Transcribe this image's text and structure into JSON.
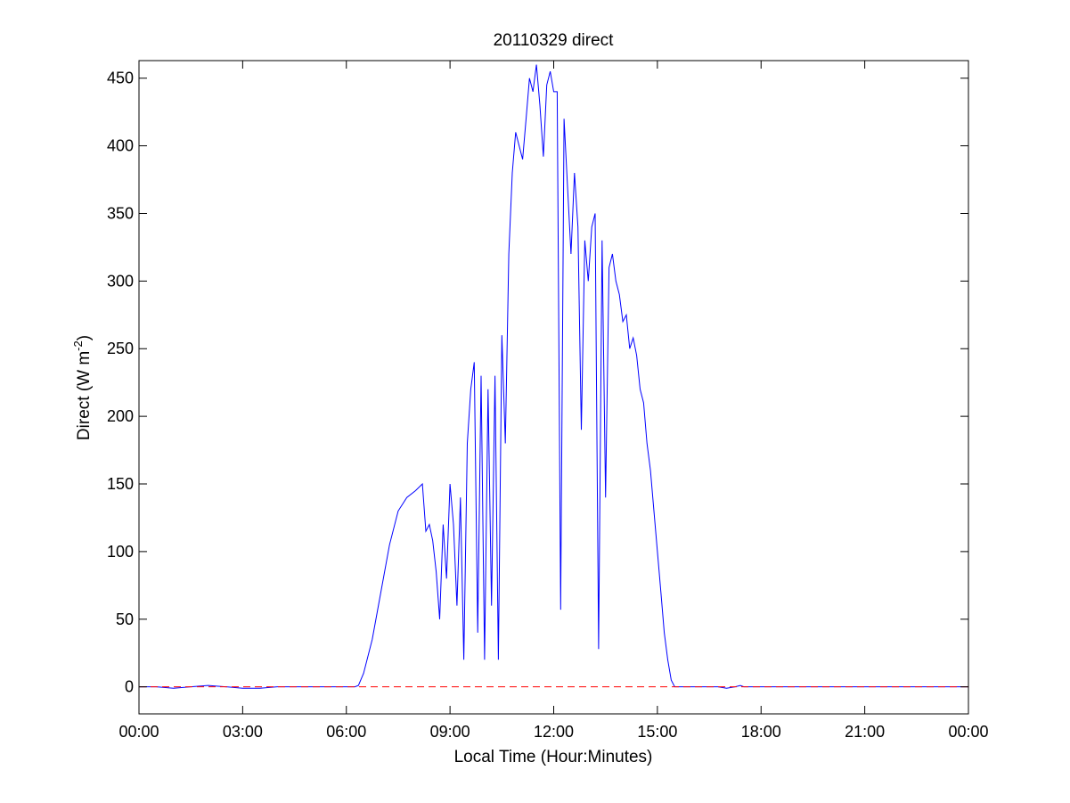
{
  "chart_data": {
    "type": "line",
    "title": "20110329 direct",
    "xlabel": "Local Time (Hour:Minutes)",
    "ylabel_main": "Direct (W m",
    "ylabel_sup": "-2",
    "ylabel_close": ")",
    "xlim_hours": [
      0,
      24
    ],
    "ylim": [
      -20,
      463
    ],
    "x_ticks": [
      {
        "hour": 0,
        "label": "00:00"
      },
      {
        "hour": 3,
        "label": "03:00"
      },
      {
        "hour": 6,
        "label": "06:00"
      },
      {
        "hour": 9,
        "label": "09:00"
      },
      {
        "hour": 12,
        "label": "12:00"
      },
      {
        "hour": 15,
        "label": "15:00"
      },
      {
        "hour": 18,
        "label": "18:00"
      },
      {
        "hour": 21,
        "label": "21:00"
      },
      {
        "hour": 24,
        "label": "00:00"
      }
    ],
    "y_ticks": [
      0,
      50,
      100,
      150,
      200,
      250,
      300,
      350,
      400,
      450
    ],
    "grid": false,
    "series": [
      {
        "color": "#0000ff",
        "style": "solid",
        "x_hours": [
          0.0,
          0.5,
          1.0,
          1.5,
          2.0,
          2.5,
          3.0,
          3.5,
          4.0,
          4.5,
          5.0,
          5.5,
          6.0,
          6.25,
          6.35,
          6.5,
          6.75,
          7.0,
          7.25,
          7.5,
          7.75,
          8.0,
          8.2,
          8.3,
          8.4,
          8.5,
          8.6,
          8.7,
          8.8,
          8.9,
          9.0,
          9.1,
          9.2,
          9.3,
          9.4,
          9.5,
          9.6,
          9.7,
          9.8,
          9.9,
          10.0,
          10.1,
          10.2,
          10.3,
          10.4,
          10.5,
          10.6,
          10.7,
          10.8,
          10.9,
          11.0,
          11.1,
          11.2,
          11.3,
          11.4,
          11.5,
          11.6,
          11.7,
          11.8,
          11.9,
          12.0,
          12.1,
          12.2,
          12.3,
          12.4,
          12.5,
          12.6,
          12.7,
          12.8,
          12.9,
          13.0,
          13.1,
          13.2,
          13.3,
          13.4,
          13.5,
          13.6,
          13.7,
          13.8,
          13.9,
          14.0,
          14.1,
          14.2,
          14.3,
          14.4,
          14.5,
          14.6,
          14.7,
          14.8,
          14.9,
          15.0,
          15.1,
          15.2,
          15.3,
          15.4,
          15.5,
          15.75,
          16.0,
          16.25,
          16.5,
          16.75,
          17.0,
          17.25,
          17.4,
          17.5,
          17.6,
          18.0,
          19.0,
          20.0,
          21.0,
          22.0,
          22.5,
          23.0,
          23.5,
          24.0
        ],
        "values": [
          0,
          0,
          -1,
          0,
          1,
          0,
          -1,
          -1,
          0,
          0,
          0,
          0,
          0,
          0,
          1,
          10,
          35,
          70,
          105,
          130,
          140,
          145,
          150,
          115,
          120,
          108,
          85,
          50,
          120,
          80,
          150,
          120,
          60,
          140,
          20,
          180,
          220,
          240,
          40,
          230,
          20,
          220,
          60,
          230,
          20,
          260,
          180,
          320,
          380,
          410,
          400,
          390,
          420,
          450,
          440,
          460,
          430,
          392,
          445,
          455,
          440,
          440,
          57,
          420,
          370,
          320,
          380,
          340,
          190,
          330,
          300,
          340,
          350,
          28,
          330,
          140,
          310,
          320,
          300,
          290,
          270,
          275,
          250,
          258,
          245,
          220,
          210,
          180,
          160,
          130,
          100,
          70,
          40,
          20,
          5,
          0,
          0,
          0,
          0,
          0,
          0,
          -1,
          0,
          1,
          0,
          0,
          0,
          0,
          0,
          0,
          0,
          0,
          0,
          0,
          0
        ]
      },
      {
        "color": "#ff0000",
        "style": "dashed",
        "x_hours": [
          0,
          24
        ],
        "values": [
          0,
          0
        ]
      }
    ]
  }
}
